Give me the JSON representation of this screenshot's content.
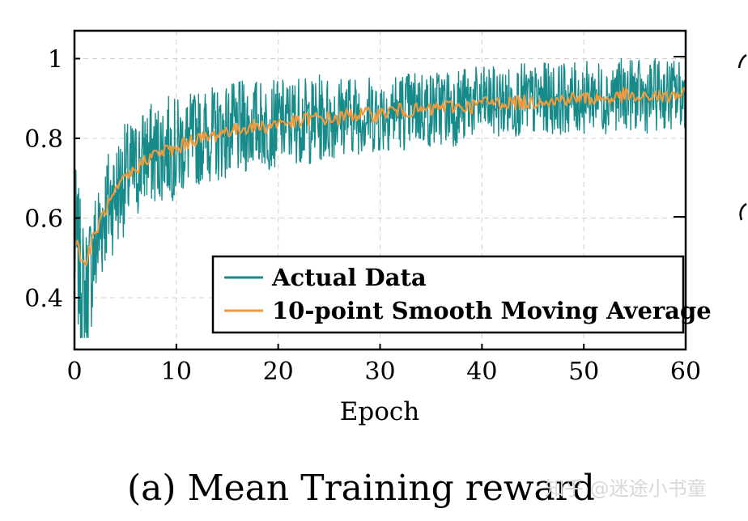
{
  "caption": "(a) Mean Training reward",
  "watermark": "知乎 @迷途小书童",
  "chart_data": {
    "type": "line",
    "title": "",
    "xlabel": "Epoch",
    "ylabel": "",
    "xlim": [
      0,
      60
    ],
    "ylim": [
      0.27,
      1.07
    ],
    "xticks": [
      0,
      10,
      20,
      30,
      40,
      50,
      60
    ],
    "xtick_labels": [
      "0",
      "10",
      "20",
      "30",
      "40",
      "50",
      "60"
    ],
    "yticks": [
      0.4,
      0.6,
      0.8,
      1
    ],
    "ytick_labels": [
      "0.4",
      "0.6",
      "0.8",
      "1"
    ],
    "grid": true,
    "legend_position": "bottom-right",
    "colors": {
      "actual": "#178a8a",
      "smooth": "#f09a3e"
    },
    "series": [
      {
        "name": "Actual Data",
        "x": [
          0,
          1,
          2,
          3,
          4,
          5,
          6,
          7,
          8,
          9,
          10,
          11,
          12,
          13,
          14,
          15,
          16,
          17,
          18,
          19,
          20,
          21,
          22,
          23,
          24,
          25,
          26,
          27,
          28,
          29,
          30,
          31,
          32,
          33,
          34,
          35,
          36,
          37,
          38,
          39,
          40,
          41,
          42,
          43,
          44,
          45,
          46,
          47,
          48,
          49,
          50,
          51,
          52,
          53,
          54,
          55,
          56,
          57,
          58,
          59,
          60
        ],
        "values": [
          0.55,
          0.4,
          0.52,
          0.62,
          0.66,
          0.7,
          0.72,
          0.76,
          0.76,
          0.78,
          0.77,
          0.79,
          0.8,
          0.81,
          0.81,
          0.82,
          0.82,
          0.83,
          0.84,
          0.83,
          0.84,
          0.84,
          0.85,
          0.84,
          0.85,
          0.85,
          0.86,
          0.86,
          0.86,
          0.86,
          0.86,
          0.87,
          0.87,
          0.87,
          0.88,
          0.87,
          0.88,
          0.88,
          0.88,
          0.89,
          0.89,
          0.89,
          0.89,
          0.89,
          0.9,
          0.89,
          0.9,
          0.9,
          0.9,
          0.9,
          0.9,
          0.91,
          0.9,
          0.91,
          0.91,
          0.91,
          0.9,
          0.91,
          0.91,
          0.91,
          0.91
        ],
        "spread": [
          0.2,
          0.17,
          0.16,
          0.15,
          0.14,
          0.14,
          0.13,
          0.13,
          0.13,
          0.13,
          0.13,
          0.12,
          0.12,
          0.12,
          0.12,
          0.12,
          0.12,
          0.12,
          0.11,
          0.11,
          0.11,
          0.11,
          0.11,
          0.11,
          0.11,
          0.11,
          0.1,
          0.1,
          0.1,
          0.1,
          0.1,
          0.1,
          0.1,
          0.1,
          0.1,
          0.1,
          0.1,
          0.1,
          0.1,
          0.09,
          0.09,
          0.09,
          0.09,
          0.09,
          0.09,
          0.09,
          0.09,
          0.09,
          0.09,
          0.09,
          0.09,
          0.09,
          0.09,
          0.09,
          0.09,
          0.09,
          0.09,
          0.09,
          0.09,
          0.09,
          0.09
        ]
      },
      {
        "name": "10-point Smooth Moving Average",
        "x": [
          0,
          1,
          2,
          3,
          4,
          5,
          6,
          7,
          8,
          9,
          10,
          11,
          12,
          13,
          14,
          15,
          16,
          17,
          18,
          19,
          20,
          21,
          22,
          23,
          24,
          25,
          26,
          27,
          28,
          29,
          30,
          31,
          32,
          33,
          34,
          35,
          36,
          37,
          38,
          39,
          40,
          41,
          42,
          43,
          44,
          45,
          46,
          47,
          48,
          49,
          50,
          51,
          52,
          53,
          54,
          55,
          56,
          57,
          58,
          59,
          60
        ],
        "values": [
          0.55,
          0.48,
          0.56,
          0.62,
          0.66,
          0.7,
          0.72,
          0.75,
          0.76,
          0.77,
          0.77,
          0.79,
          0.8,
          0.8,
          0.81,
          0.82,
          0.82,
          0.83,
          0.83,
          0.83,
          0.84,
          0.84,
          0.84,
          0.85,
          0.85,
          0.85,
          0.85,
          0.86,
          0.86,
          0.86,
          0.86,
          0.87,
          0.87,
          0.87,
          0.87,
          0.87,
          0.88,
          0.88,
          0.88,
          0.88,
          0.89,
          0.89,
          0.89,
          0.89,
          0.89,
          0.89,
          0.9,
          0.89,
          0.9,
          0.9,
          0.9,
          0.9,
          0.9,
          0.9,
          0.91,
          0.9,
          0.9,
          0.91,
          0.9,
          0.91,
          0.91
        ]
      }
    ]
  }
}
